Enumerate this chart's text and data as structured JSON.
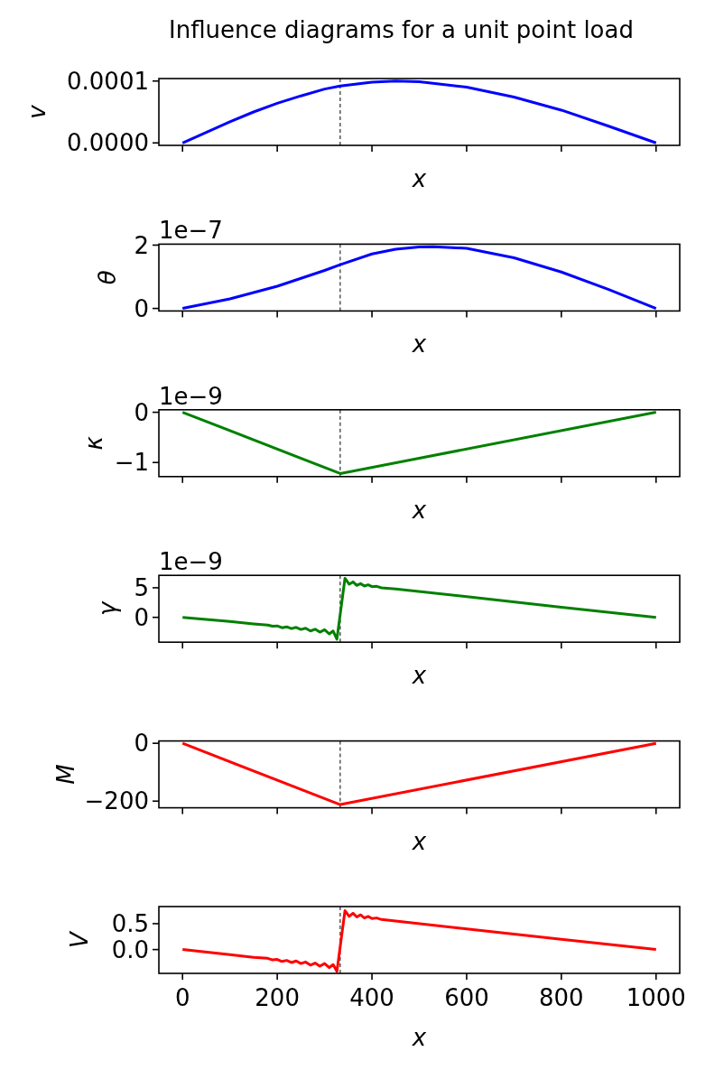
{
  "chart_data": [
    {
      "type": "line",
      "title": "Influence diagrams for a unit point load",
      "xlabel": "x",
      "ylabel": "v",
      "tick_labels": "y",
      "xlim": [
        -50,
        1050
      ],
      "xticks": [
        0,
        200,
        400,
        600,
        800,
        1000
      ],
      "ylim": [
        -4e-06,
        0.000104
      ],
      "yticks": [
        {
          "value": 0,
          "label": "0.0000"
        },
        {
          "value": 0.0001,
          "label": "0.0001"
        }
      ],
      "x": [
        0,
        50,
        100,
        150,
        200,
        250,
        300,
        333,
        400,
        450,
        500,
        600,
        700,
        800,
        900,
        1000
      ],
      "series": [
        {
          "color": "#0000ff",
          "values": [
            0,
            1.7e-05,
            3.4e-05,
            5e-05,
            6.4e-05,
            7.6e-05,
            8.7e-05,
            9.2e-05,
            9.8e-05,
            0.0001,
            9.9e-05,
            9e-05,
            7.4e-05,
            5.3e-05,
            2.7e-05,
            0
          ]
        }
      ],
      "ref_lines": [
        {
          "axis": "x",
          "value": 333,
          "color": "#000000",
          "line_style": "dashed"
        }
      ]
    },
    {
      "type": "line",
      "xlabel": "x",
      "ylabel": "θ",
      "tick_labels": "y",
      "annotations": [
        "1e−7"
      ],
      "xlim": [
        -50,
        1050
      ],
      "xticks": [
        0,
        200,
        400,
        600,
        800,
        1000
      ],
      "ylim": [
        -0.08,
        2.03
      ],
      "yticks": [
        0,
        2
      ],
      "x": [
        0,
        100,
        200,
        250,
        300,
        333,
        400,
        450,
        500,
        530,
        600,
        700,
        800,
        900,
        1000
      ],
      "series": [
        {
          "color": "#0000ff",
          "values": [
            0,
            0.3,
            0.7,
            0.95,
            1.2,
            1.38,
            1.72,
            1.87,
            1.94,
            1.95,
            1.9,
            1.6,
            1.15,
            0.6,
            0
          ]
        }
      ],
      "ref_lines": [
        {
          "axis": "x",
          "value": 333,
          "color": "#000000",
          "line_style": "dashed"
        }
      ]
    },
    {
      "type": "line",
      "xlabel": "x",
      "ylabel": "κ",
      "tick_labels": "y",
      "annotations": [
        "1e−9"
      ],
      "xlim": [
        -50,
        1050
      ],
      "xticks": [
        0,
        200,
        400,
        600,
        800,
        1000
      ],
      "ylim": [
        -1.28,
        0.05
      ],
      "yticks": [
        {
          "value": -1,
          "label": "−1"
        },
        0
      ],
      "x": [
        0,
        333,
        1000
      ],
      "series": [
        {
          "color": "#008000",
          "values": [
            0,
            -1.22,
            0
          ]
        }
      ],
      "ref_lines": [
        {
          "axis": "x",
          "value": 333,
          "color": "#000000",
          "line_style": "dashed"
        }
      ]
    },
    {
      "type": "line",
      "xlabel": "x",
      "ylabel": "γ",
      "tick_labels": "y",
      "annotations": [
        "1e−9"
      ],
      "xlim": [
        -50,
        1050
      ],
      "xticks": [
        0,
        200,
        400,
        600,
        800,
        1000
      ],
      "ylim": [
        -4.2,
        7.1
      ],
      "yticks": [
        0,
        5
      ],
      "x": [
        0,
        100,
        150,
        180,
        190,
        200,
        210,
        220,
        230,
        240,
        250,
        260,
        270,
        280,
        290,
        300,
        310,
        318,
        326,
        343,
        352,
        360,
        368,
        376,
        384,
        392,
        400,
        410,
        420,
        450,
        600,
        800,
        1000
      ],
      "series": [
        {
          "color": "#008000",
          "values": [
            0,
            -0.7,
            -1.1,
            -1.3,
            -1.5,
            -1.45,
            -1.75,
            -1.6,
            -1.9,
            -1.7,
            -2.05,
            -1.85,
            -2.3,
            -2.0,
            -2.5,
            -2.1,
            -2.8,
            -2.3,
            -3.7,
            6.6,
            5.6,
            6.0,
            5.4,
            5.7,
            5.3,
            5.5,
            5.2,
            5.25,
            5.0,
            4.8,
            3.5,
            1.7,
            0
          ]
        }
      ],
      "ref_lines": [
        {
          "axis": "x",
          "value": 333,
          "color": "#000000",
          "line_style": "dashed"
        }
      ]
    },
    {
      "type": "line",
      "xlabel": "x",
      "ylabel": "M",
      "tick_labels": "y",
      "xlim": [
        -50,
        1050
      ],
      "xticks": [
        0,
        200,
        400,
        600,
        800,
        1000
      ],
      "ylim": [
        -223,
        8
      ],
      "yticks": [
        {
          "value": -200,
          "label": "−200"
        },
        0
      ],
      "x": [
        0,
        333,
        1000
      ],
      "series": [
        {
          "color": "#ff0000",
          "values": [
            0,
            -212,
            0
          ]
        }
      ],
      "ref_lines": [
        {
          "axis": "x",
          "value": 333,
          "color": "#000000",
          "line_style": "dashed"
        }
      ]
    },
    {
      "type": "line",
      "xlabel": "x",
      "ylabel": "V",
      "xlim": [
        -50,
        1050
      ],
      "xticks": [
        0,
        200,
        400,
        600,
        800,
        1000
      ],
      "ylim": [
        -0.46,
        0.83
      ],
      "yticks": [
        {
          "value": 0,
          "label": "0.0"
        },
        0.5
      ],
      "x": [
        0,
        100,
        150,
        180,
        190,
        200,
        210,
        220,
        230,
        240,
        250,
        260,
        270,
        280,
        290,
        300,
        310,
        318,
        326,
        343,
        352,
        360,
        368,
        376,
        384,
        392,
        400,
        410,
        420,
        450,
        600,
        800,
        1000
      ],
      "series": [
        {
          "color": "#ff0000",
          "values": [
            0,
            -0.1,
            -0.15,
            -0.17,
            -0.2,
            -0.19,
            -0.23,
            -0.21,
            -0.25,
            -0.22,
            -0.27,
            -0.24,
            -0.3,
            -0.26,
            -0.32,
            -0.27,
            -0.35,
            -0.29,
            -0.42,
            0.75,
            0.64,
            0.7,
            0.63,
            0.67,
            0.61,
            0.64,
            0.6,
            0.61,
            0.58,
            0.55,
            0.4,
            0.2,
            0
          ]
        }
      ],
      "ref_lines": [
        {
          "axis": "x",
          "value": 333,
          "color": "#000000",
          "line_style": "dashed"
        }
      ]
    }
  ]
}
